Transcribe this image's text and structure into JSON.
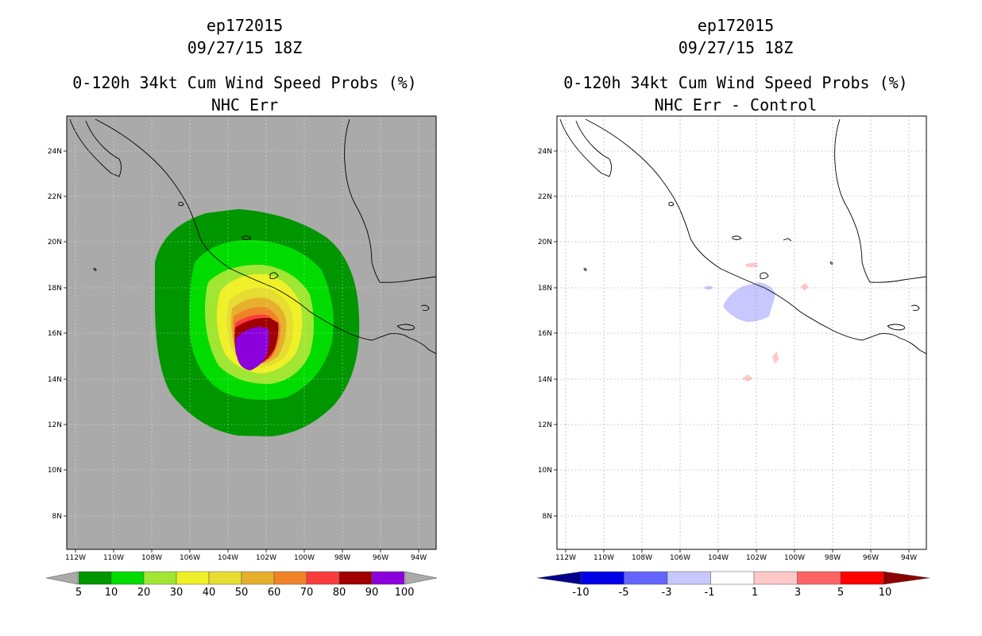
{
  "left_panel": {
    "storm_id": "ep172015",
    "datetime": "09/27/15 18Z",
    "title": "0-120h 34kt Cum Wind Speed Probs (%)",
    "subtitle": "NHC Err",
    "colorbar": {
      "labels": [
        "5",
        "10",
        "20",
        "30",
        "40",
        "50",
        "60",
        "70",
        "80",
        "90",
        "100"
      ],
      "colors": [
        "#009600",
        "#00dc00",
        "#a0e632",
        "#f0f028",
        "#e6dc32",
        "#e6af2d",
        "#f08228",
        "#fa3c3c",
        "#a00000",
        "#8c00dc"
      ],
      "under_color": "#aaaaaa",
      "over_color": "#aaaaaa"
    }
  },
  "right_panel": {
    "storm_id": "ep172015",
    "datetime": "09/27/15 18Z",
    "title": "0-120h 34kt Cum Wind Speed Probs (%)",
    "subtitle": "NHC Err - Control",
    "colorbar": {
      "labels": [
        "-10",
        "-5",
        "-3",
        "-1",
        "1",
        "3",
        "5",
        "10"
      ],
      "colors": [
        "#0000e6",
        "#6464ff",
        "#c8c8ff",
        "#ffffff",
        "#ffc8c8",
        "#ff6464",
        "#ff0000"
      ],
      "under_color": "#00008c",
      "over_color": "#8c0000"
    }
  },
  "map": {
    "lat_labels": [
      "24N",
      "22N",
      "20N",
      "18N",
      "16N",
      "14N",
      "12N",
      "10N",
      "8N"
    ],
    "lon_labels": [
      "112W",
      "110W",
      "108W",
      "106W",
      "104W",
      "102W",
      "100W",
      "98W",
      "96W",
      "94W"
    ]
  }
}
